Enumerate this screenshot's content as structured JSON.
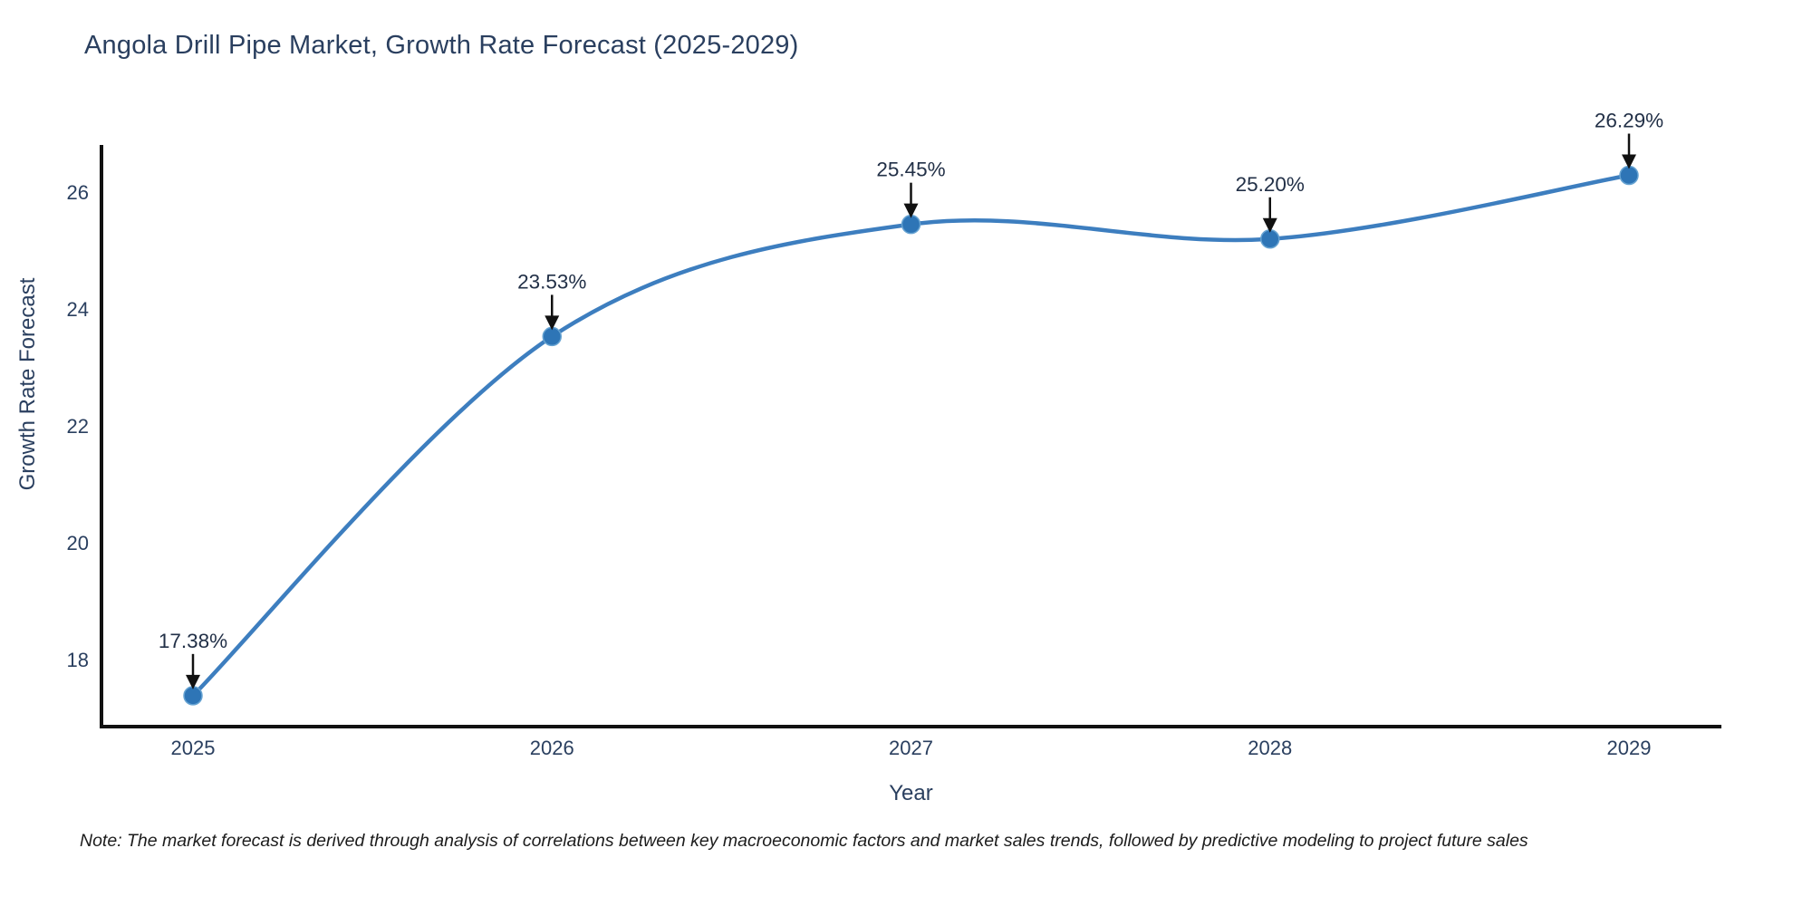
{
  "title": "Angola Drill Pipe Market, Growth Rate Forecast (2025-2029)",
  "note": "Note: The market forecast is derived through analysis of correlations between key macroeconomic factors and market sales trends, followed by predictive modeling to project future sales",
  "chart_data": {
    "type": "line",
    "curve": "spline",
    "title": "Angola Drill Pipe Market, Growth Rate Forecast (2025-2029)",
    "xlabel": "Year",
    "ylabel": "Growth Rate Forecast",
    "categories": [
      "2025",
      "2026",
      "2027",
      "2028",
      "2029"
    ],
    "series": [
      {
        "name": "Growth Rate Forecast",
        "values": [
          17.38,
          23.53,
          25.45,
          25.2,
          26.29
        ]
      }
    ],
    "point_labels": [
      "17.38%",
      "23.53%",
      "25.45%",
      "25.20%",
      "26.29%"
    ],
    "yticks": [
      18,
      20,
      22,
      24,
      26
    ],
    "ylim": [
      16.85,
      26.81
    ],
    "grid": false,
    "legend_position": "none",
    "colors": {
      "line": "#3d7ebf",
      "marker": "#2e75b6",
      "marker_edge": "#66a3d2",
      "axis": "#111111",
      "tick_text": "#2a3f5f",
      "annotation_text": "#223047",
      "annotation_arrow": "#111111",
      "title_text": "#2a3f5f"
    }
  }
}
